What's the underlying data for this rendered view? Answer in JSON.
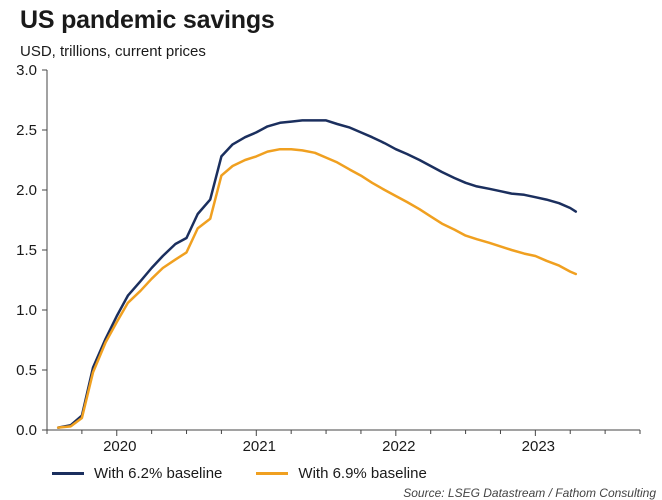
{
  "chart_data": {
    "type": "line",
    "title": "US pandemic savings",
    "subtitle": "USD, trillions, current prices",
    "xlabel": "",
    "ylabel": "",
    "xlim": [
      2019.5,
      2023.75
    ],
    "ylim": [
      0,
      3.0
    ],
    "yticks": [
      "0.0",
      "0.5",
      "1.0",
      "1.5",
      "2.0",
      "2.5",
      "3.0"
    ],
    "xticks": [
      {
        "label": "2020",
        "value": 2020.0
      },
      {
        "label": "2021",
        "value": 2021.0
      },
      {
        "label": "2022",
        "value": 2022.0
      },
      {
        "label": "2023",
        "value": 2023.0
      }
    ],
    "grid": false,
    "legend_position": "bottom",
    "source": "Source: LSEG Datastream / Fathom Consulting",
    "series": [
      {
        "name": "With 6.2% baseline",
        "color": "#1b2f5e",
        "x": [
          2019.58,
          2019.67,
          2019.75,
          2019.83,
          2019.92,
          2020.0,
          2020.08,
          2020.17,
          2020.25,
          2020.33,
          2020.42,
          2020.5,
          2020.58,
          2020.67,
          2020.75,
          2020.83,
          2020.92,
          2021.0,
          2021.08,
          2021.17,
          2021.25,
          2021.33,
          2021.42,
          2021.5,
          2021.58,
          2021.67,
          2021.75,
          2021.83,
          2021.92,
          2022.0,
          2022.08,
          2022.17,
          2022.25,
          2022.33,
          2022.42,
          2022.5,
          2022.58,
          2022.67,
          2022.75,
          2022.83,
          2022.92,
          2023.0,
          2023.08,
          2023.17,
          2023.25,
          2023.29
        ],
        "y": [
          0.02,
          0.04,
          0.12,
          0.52,
          0.76,
          0.95,
          1.12,
          1.24,
          1.35,
          1.45,
          1.55,
          1.6,
          1.8,
          1.92,
          2.28,
          2.38,
          2.44,
          2.48,
          2.53,
          2.56,
          2.57,
          2.58,
          2.58,
          2.58,
          2.55,
          2.52,
          2.48,
          2.44,
          2.39,
          2.34,
          2.3,
          2.25,
          2.2,
          2.15,
          2.1,
          2.06,
          2.03,
          2.01,
          1.99,
          1.97,
          1.96,
          1.94,
          1.92,
          1.89,
          1.85,
          1.82
        ]
      },
      {
        "name": "With 6.9% baseline",
        "color": "#f0a020",
        "x": [
          2019.58,
          2019.67,
          2019.75,
          2019.83,
          2019.92,
          2020.0,
          2020.08,
          2020.17,
          2020.25,
          2020.33,
          2020.42,
          2020.5,
          2020.58,
          2020.67,
          2020.75,
          2020.83,
          2020.92,
          2021.0,
          2021.08,
          2021.17,
          2021.25,
          2021.33,
          2021.42,
          2021.5,
          2021.58,
          2021.67,
          2021.75,
          2021.83,
          2021.92,
          2022.0,
          2022.08,
          2022.17,
          2022.25,
          2022.33,
          2022.42,
          2022.5,
          2022.58,
          2022.67,
          2022.75,
          2022.83,
          2022.92,
          2023.0,
          2023.08,
          2023.17,
          2023.25,
          2023.29
        ],
        "y": [
          0.02,
          0.03,
          0.1,
          0.48,
          0.73,
          0.9,
          1.06,
          1.16,
          1.26,
          1.35,
          1.42,
          1.48,
          1.68,
          1.76,
          2.12,
          2.2,
          2.25,
          2.28,
          2.32,
          2.34,
          2.34,
          2.33,
          2.31,
          2.27,
          2.23,
          2.17,
          2.12,
          2.06,
          2.0,
          1.95,
          1.9,
          1.84,
          1.78,
          1.72,
          1.67,
          1.62,
          1.59,
          1.56,
          1.53,
          1.5,
          1.47,
          1.45,
          1.41,
          1.37,
          1.32,
          1.3
        ]
      }
    ]
  }
}
